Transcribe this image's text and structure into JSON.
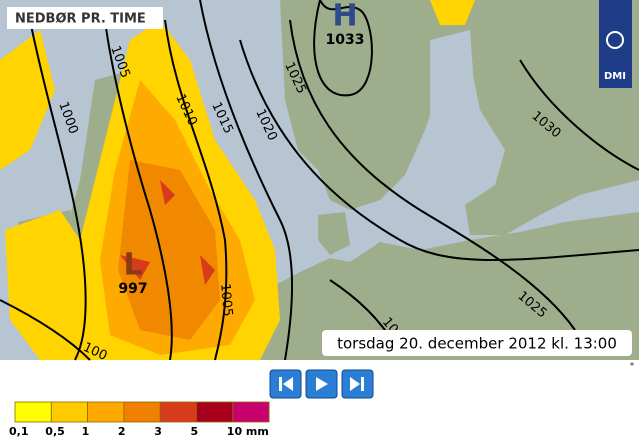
{
  "header": {
    "title": "NEDBØR PR. TIME"
  },
  "pressure_centers": [
    {
      "symbol": "H",
      "label": "1033"
    },
    {
      "symbol": "L",
      "label": "997"
    }
  ],
  "isobar_labels": [
    "1000",
    "1005",
    "1010",
    "1015",
    "1020",
    "1025",
    "1030",
    "1025",
    "1005",
    "10",
    "100"
  ],
  "timestamp": "torsdag 20. december 2012 kl. 13:00",
  "logo": "DMI",
  "footnote": "*",
  "legend": {
    "items": [
      {
        "label": "0,1",
        "color": "#ffff00"
      },
      {
        "label": "0,5",
        "color": "#ffcc00"
      },
      {
        "label": "1",
        "color": "#ffa800"
      },
      {
        "label": "2",
        "color": "#f08000"
      },
      {
        "label": "3",
        "color": "#d83a1c"
      },
      {
        "label": "5",
        "color": "#a8001c"
      },
      {
        "label": "10 mm",
        "color": "#c8006e"
      }
    ]
  }
}
